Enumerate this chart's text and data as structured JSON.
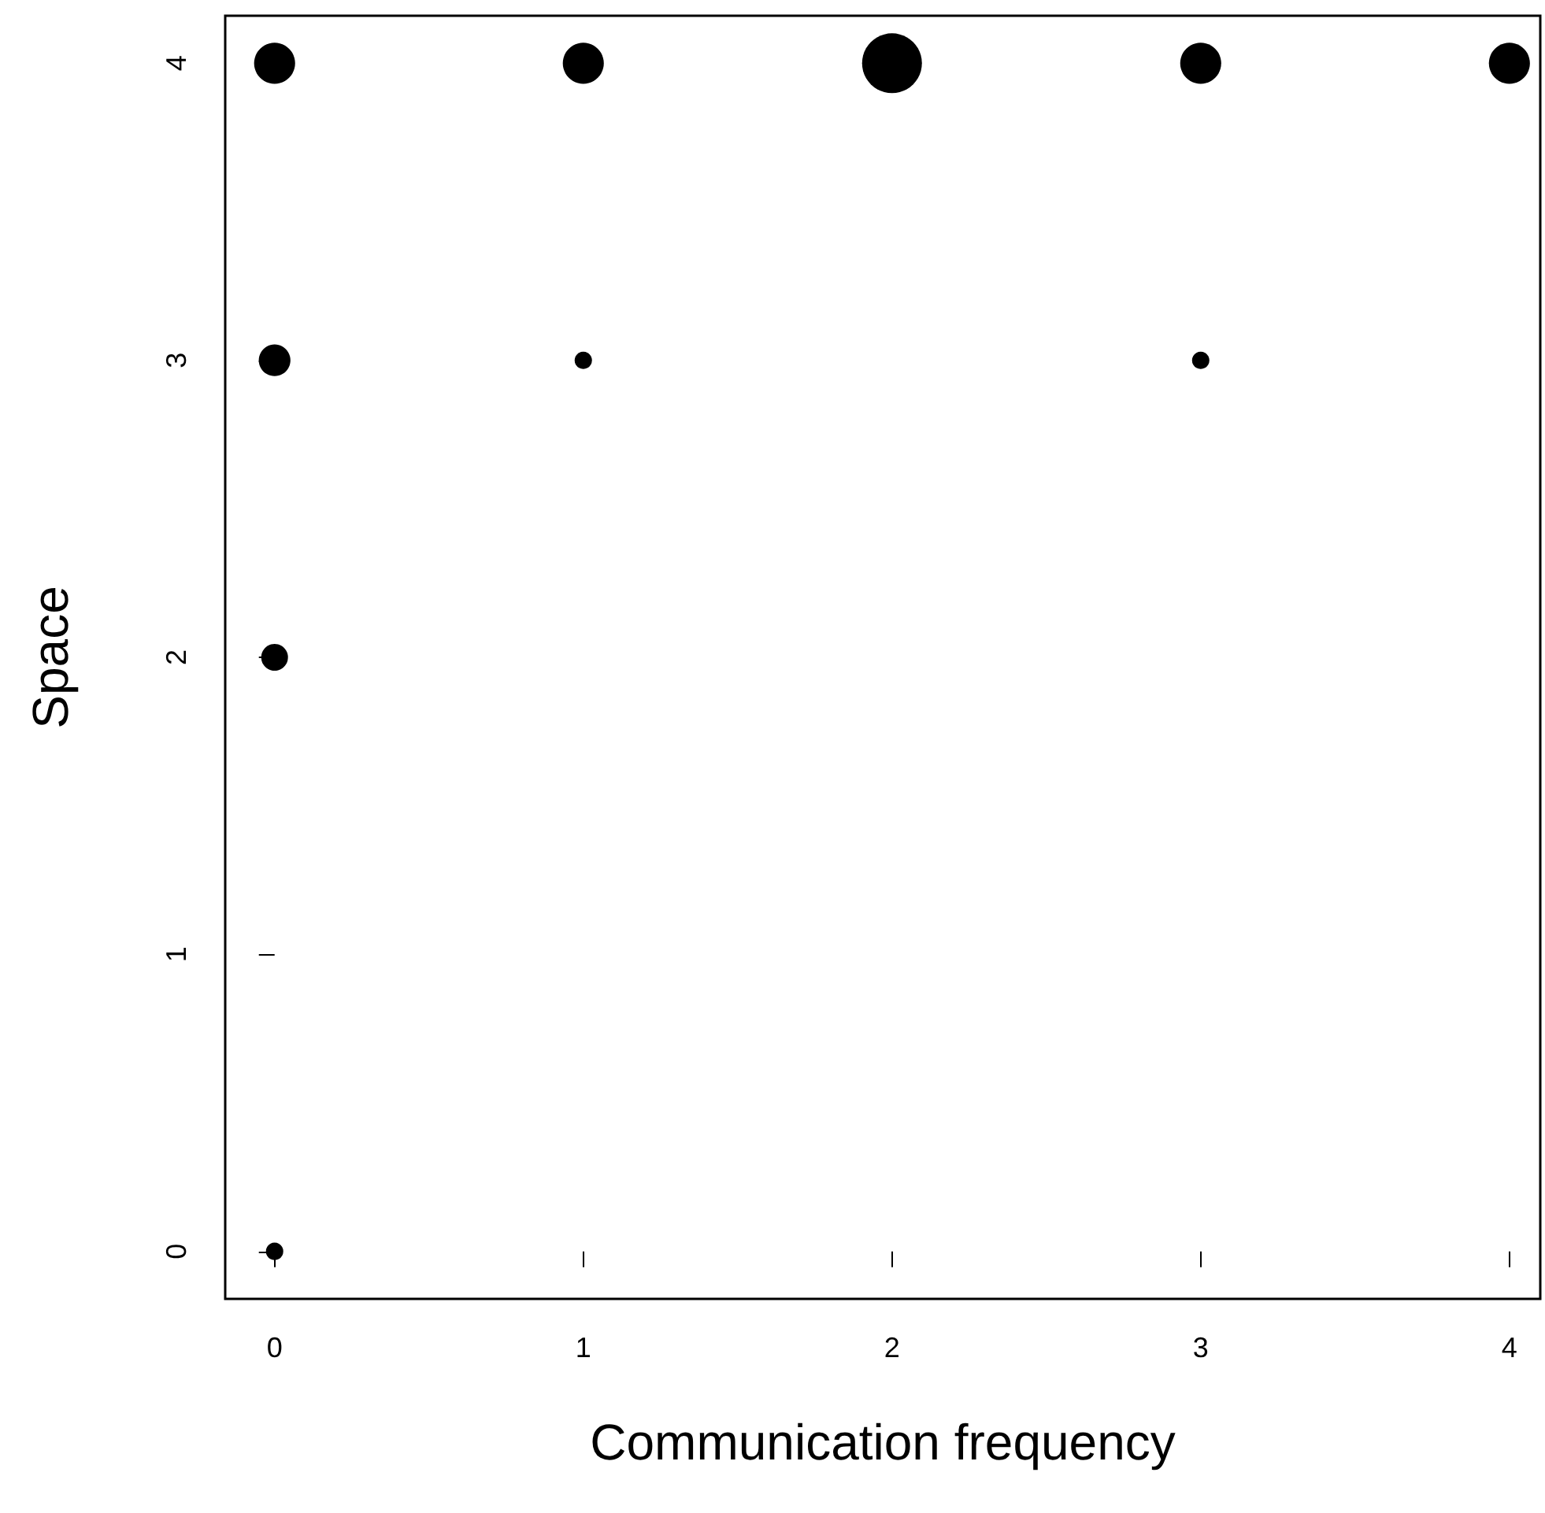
{
  "chart_data": {
    "type": "bubble",
    "xlabel": "Communication frequency",
    "ylabel": "Space",
    "x": [
      0,
      1,
      2,
      3,
      4,
      0,
      1,
      3,
      0,
      0
    ],
    "values": [
      4,
      4,
      4,
      4,
      4,
      3,
      3,
      3,
      2,
      0
    ],
    "sizes": [
      0.47,
      0.47,
      1,
      0.47,
      0.47,
      0.28,
      0.084,
      0.084,
      0.2,
      0.084
    ],
    "color": "#000000",
    "marker": "circle",
    "xlim": [
      -0.16,
      4.1
    ],
    "ylim": [
      -0.16,
      4.16
    ],
    "xticks": [
      0,
      1,
      2,
      3,
      4
    ],
    "yticks": [
      0,
      1,
      2,
      3,
      4
    ]
  }
}
